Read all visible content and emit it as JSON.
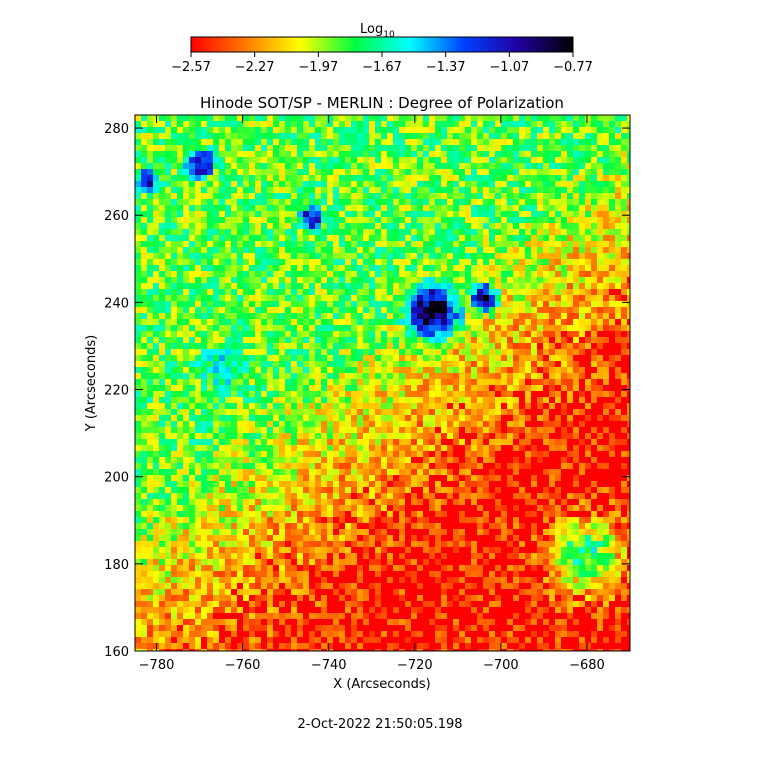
{
  "chart_data": {
    "type": "heatmap",
    "title": "Hinode SOT/SP - MERLIN : Degree of Polarization",
    "xlabel": "X (Arcseconds)",
    "ylabel": "Y (Arcseconds)",
    "xlim": [
      -785,
      -670
    ],
    "ylim": [
      160,
      283
    ],
    "x_ticks": [
      -780,
      -760,
      -740,
      -720,
      -700,
      -680
    ],
    "y_ticks": [
      160,
      180,
      200,
      220,
      240,
      260,
      280
    ],
    "colorbar": {
      "label_base": "Log",
      "label_sub": "10",
      "range": [
        -2.57,
        -0.77
      ],
      "ticks": [
        "-2.57",
        "-2.27",
        "-1.97",
        "-1.67",
        "-1.37",
        "-1.07",
        "-0.77"
      ],
      "colormap": [
        "#ff0000",
        "#ff7a00",
        "#ffff00",
        "#00ff40",
        "#00ffff",
        "#0040ff",
        "#2000a0",
        "#000000"
      ]
    },
    "features": [
      {
        "name": "main sunspot",
        "x": -716,
        "y": 238,
        "radius": 10,
        "log_dop": -0.85
      },
      {
        "name": "umbral fragment",
        "x": -704,
        "y": 241,
        "radius": 5,
        "log_dop": -0.95
      },
      {
        "name": "small spot",
        "x": -744,
        "y": 259,
        "radius": 4.5,
        "log_dop": -1.0
      },
      {
        "name": "pore",
        "x": -770,
        "y": 272,
        "radius": 6,
        "log_dop": -1.0
      },
      {
        "name": "pore",
        "x": -782,
        "y": 268,
        "radius": 5,
        "log_dop": -1.1
      },
      {
        "name": "plage",
        "x": -765,
        "y": 225,
        "radius": 14,
        "log_dop": -1.6
      },
      {
        "name": "plage",
        "x": -680,
        "y": 182,
        "radius": 10,
        "log_dop": -1.7
      }
    ],
    "background_log_dop": -2.5
  },
  "timestamp": "2-Oct-2022 21:50:05.198"
}
